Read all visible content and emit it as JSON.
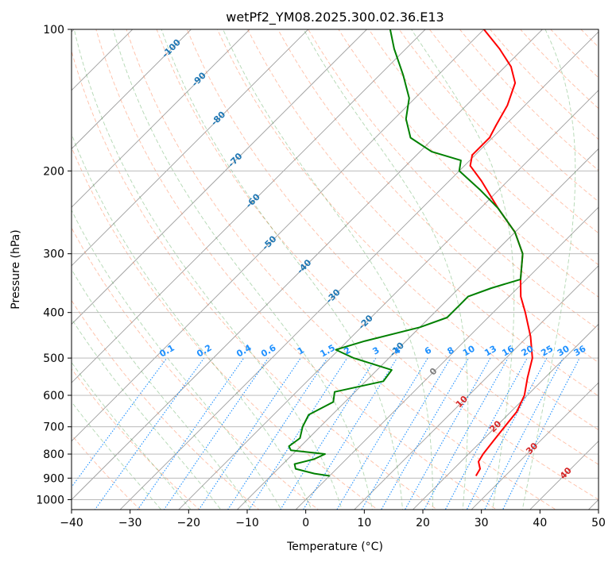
{
  "chart_data": {
    "type": "line",
    "subtype": "skew-t log-p diagram",
    "title": "wetPf2_YM08.2025.300.02.36.E13",
    "xlabel": "Temperature (°C)",
    "ylabel": "Pressure (hPa)",
    "xlim": [
      -40,
      50
    ],
    "ylim": [
      1050,
      100
    ],
    "y_scale": "log",
    "x_ticks": [
      -40,
      -30,
      -20,
      -10,
      0,
      10,
      20,
      30,
      40,
      50
    ],
    "x_tick_labels": [
      "−40",
      "−30",
      "−20",
      "−10",
      "0",
      "10",
      "20",
      "30",
      "40",
      "50"
    ],
    "y_ticks": [
      100,
      200,
      300,
      400,
      500,
      600,
      700,
      800,
      900,
      1000
    ],
    "y_tick_labels": [
      "100",
      "200",
      "300",
      "400",
      "500",
      "600",
      "700",
      "800",
      "900",
      "1000"
    ],
    "grid": true,
    "colors": {
      "temperature": "#ff0000",
      "dewpoint": "#008000",
      "isotherm": "#000000",
      "dry_adiabat": "#ff7f50",
      "moist_adiabat": "#228b22",
      "mixing_ratio": "#1e90ff",
      "isotherm_label": "#1f77b4",
      "warm_isotherm_label": "#d62728",
      "zero_label": "#808080",
      "tan_curve": "#d2b48c"
    },
    "isotherm_labels": [
      {
        "value": -100,
        "text": "-100",
        "p": 110
      },
      {
        "value": -90,
        "text": "-90",
        "p": 128
      },
      {
        "value": -80,
        "text": "-80",
        "p": 155
      },
      {
        "value": -70,
        "text": "-70",
        "p": 190
      },
      {
        "value": -60,
        "text": "-60",
        "p": 232
      },
      {
        "value": -50,
        "text": "-50",
        "p": 285
      },
      {
        "value": -40,
        "text": "-40",
        "p": 320
      },
      {
        "value": -30,
        "text": "-30",
        "p": 370
      },
      {
        "value": -20,
        "text": "-20",
        "p": 420
      },
      {
        "value": -10,
        "text": "-10",
        "p": 480
      },
      {
        "value": 0,
        "text": "0",
        "p": 535
      },
      {
        "value": 10,
        "text": "10",
        "p": 620
      },
      {
        "value": 20,
        "text": "20",
        "p": 700
      },
      {
        "value": 30,
        "text": "30",
        "p": 780
      },
      {
        "value": 40,
        "text": "40",
        "p": 880
      }
    ],
    "mixing_ratio_lines": [
      {
        "value": 0.1,
        "text": "0.1",
        "t500": -22.5
      },
      {
        "value": 0.2,
        "text": "0.2",
        "t500": -16.5
      },
      {
        "value": 0.4,
        "text": "0.4",
        "t500": -9.5
      },
      {
        "value": 0.6,
        "text": "0.6",
        "t500": -5
      },
      {
        "value": 1,
        "text": "1",
        "t500": 0.5
      },
      {
        "value": 1.5,
        "text": "1.5",
        "t500": 5
      },
      {
        "value": 2,
        "text": "2",
        "t500": 8.5
      },
      {
        "value": 3,
        "text": "3",
        "t500": 13.5
      },
      {
        "value": 4,
        "text": "4",
        "t500": 17
      },
      {
        "value": 6,
        "text": "6",
        "t500": 22
      },
      {
        "value": 8,
        "text": "8",
        "t500": 26
      },
      {
        "value": 10,
        "text": "10",
        "t500": 29
      },
      {
        "value": 13,
        "text": "13",
        "t500": 33
      },
      {
        "value": 16,
        "text": "16",
        "t500": 36
      },
      {
        "value": 20,
        "text": "20",
        "t500": 39.5
      },
      {
        "value": 25,
        "text": "25",
        "t500": 42.5
      },
      {
        "value": 30,
        "text": "30",
        "t500": 45
      },
      {
        "value": 36,
        "text": "36",
        "t500": 48
      }
    ],
    "series": [
      {
        "name": "Temperature",
        "color": "#ff0000",
        "points": [
          {
            "p": 890,
            "t": 25.0
          },
          {
            "p": 860,
            "t": 24.5
          },
          {
            "p": 830,
            "t": 23.0
          },
          {
            "p": 800,
            "t": 22.5
          },
          {
            "p": 750,
            "t": 22.0
          },
          {
            "p": 700,
            "t": 21.5
          },
          {
            "p": 650,
            "t": 21.0
          },
          {
            "p": 600,
            "t": 19.5
          },
          {
            "p": 550,
            "t": 17.0
          },
          {
            "p": 500,
            "t": 14.5
          },
          {
            "p": 450,
            "t": 10.5
          },
          {
            "p": 400,
            "t": 5.5
          },
          {
            "p": 370,
            "t": 2.0
          },
          {
            "p": 340,
            "t": -1.0
          },
          {
            "p": 300,
            "t": -5.0
          },
          {
            "p": 270,
            "t": -10.0
          },
          {
            "p": 240,
            "t": -17.0
          },
          {
            "p": 210,
            "t": -24.5
          },
          {
            "p": 195,
            "t": -29.0
          },
          {
            "p": 185,
            "t": -30.5
          },
          {
            "p": 170,
            "t": -30.5
          },
          {
            "p": 160,
            "t": -31.5
          },
          {
            "p": 145,
            "t": -33.0
          },
          {
            "p": 130,
            "t": -35.5
          },
          {
            "p": 120,
            "t": -39.0
          },
          {
            "p": 110,
            "t": -44.0
          },
          {
            "p": 100,
            "t": -50.0
          }
        ]
      },
      {
        "name": "Dewpoint",
        "color": "#008000",
        "points": [
          {
            "p": 890,
            "t": 0.0
          },
          {
            "p": 880,
            "t": -3.0
          },
          {
            "p": 860,
            "t": -7.0
          },
          {
            "p": 840,
            "t": -8.0
          },
          {
            "p": 820,
            "t": -5.5
          },
          {
            "p": 800,
            "t": -4.5
          },
          {
            "p": 785,
            "t": -11.0
          },
          {
            "p": 770,
            "t": -12.0
          },
          {
            "p": 740,
            "t": -11.5
          },
          {
            "p": 700,
            "t": -13.0
          },
          {
            "p": 660,
            "t": -14.0
          },
          {
            "p": 620,
            "t": -12.0
          },
          {
            "p": 590,
            "t": -13.5
          },
          {
            "p": 560,
            "t": -7.0
          },
          {
            "p": 530,
            "t": -7.5
          },
          {
            "p": 500,
            "t": -16.0
          },
          {
            "p": 480,
            "t": -20.5
          },
          {
            "p": 460,
            "t": -17.0
          },
          {
            "p": 430,
            "t": -10.0
          },
          {
            "p": 410,
            "t": -7.0
          },
          {
            "p": 390,
            "t": -7.0
          },
          {
            "p": 370,
            "t": -7.0
          },
          {
            "p": 355,
            "t": -4.5
          },
          {
            "p": 340,
            "t": -1.0
          },
          {
            "p": 300,
            "t": -5.0
          },
          {
            "p": 270,
            "t": -10.0
          },
          {
            "p": 240,
            "t": -17.0
          },
          {
            "p": 220,
            "t": -23.0
          },
          {
            "p": 200,
            "t": -30.0
          },
          {
            "p": 190,
            "t": -31.5
          },
          {
            "p": 182,
            "t": -38.0
          },
          {
            "p": 170,
            "t": -44.0
          },
          {
            "p": 155,
            "t": -48.0
          },
          {
            "p": 140,
            "t": -51.0
          },
          {
            "p": 125,
            "t": -56.0
          },
          {
            "p": 110,
            "t": -62.0
          },
          {
            "p": 100,
            "t": -66.0
          }
        ]
      }
    ]
  }
}
